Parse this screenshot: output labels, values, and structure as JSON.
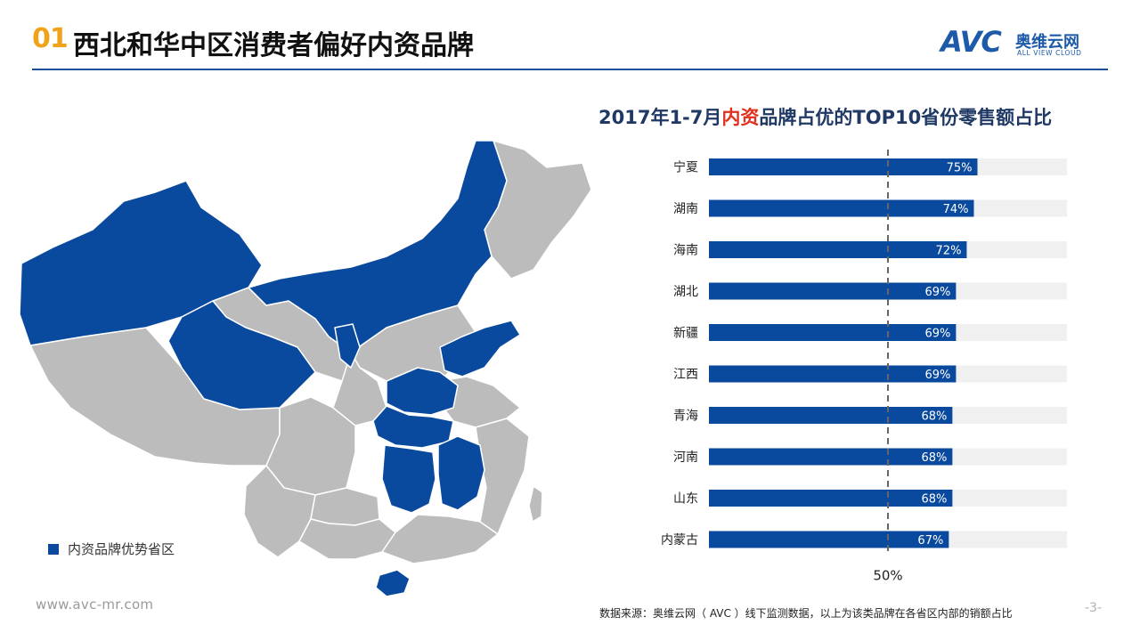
{
  "header": {
    "section_number": "01",
    "title": "西北和华中区消费者偏好内资品牌"
  },
  "logo": {
    "brand_latin": "AVC",
    "brand_cn": "奥维云网",
    "tagline": "ALL VIEW CLOUD"
  },
  "map": {
    "legend_label": "内资品牌优势省区",
    "highlight_color": "#0a4a9e",
    "base_color": "#bcbcbc"
  },
  "chart_title": {
    "prefix": "2017年1-7月",
    "highlight": "内资",
    "suffix": "品牌占优的TOP10省份零售额占比"
  },
  "chart_data": {
    "type": "bar",
    "orientation": "horizontal",
    "categories": [
      "宁夏",
      "湖南",
      "海南",
      "湖北",
      "新疆",
      "江西",
      "青海",
      "河南",
      "山东",
      "内蒙古"
    ],
    "values": [
      75,
      74,
      72,
      69,
      69,
      69,
      68,
      68,
      68,
      67
    ],
    "value_labels": [
      "75%",
      "74%",
      "72%",
      "69%",
      "69%",
      "69%",
      "68%",
      "68%",
      "68%",
      "67%"
    ],
    "xlim": [
      0,
      100
    ],
    "reference_line": {
      "value": 50,
      "label": "50%"
    },
    "bar_color": "#0a4a9e",
    "track_color": "#f0f0f0"
  },
  "footer": {
    "url": "www.avc-mr.com",
    "source": "数据来源：奥维云网（ AVC ）线下监测数据，以上为该类品牌在各省区内部的销额占比",
    "page": "-3-"
  }
}
